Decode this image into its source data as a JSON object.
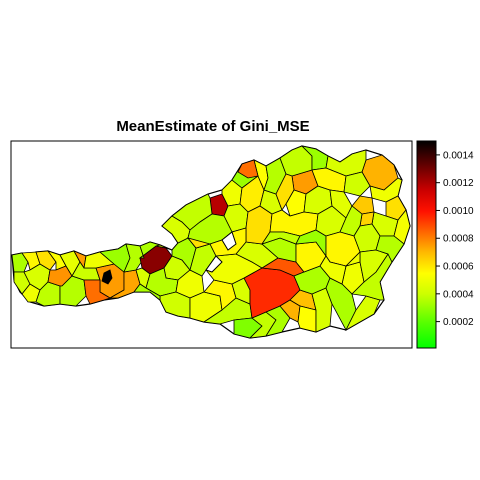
{
  "title": "MeanEstimate of Gini_MSE",
  "legend": {
    "ticks": [
      "0.0002",
      "0.0004",
      "0.0006",
      "0.0008",
      "0.0010",
      "0.0012",
      "0.0014"
    ],
    "tick_values": [
      0.0002,
      0.0004,
      0.0006,
      0.0008,
      0.001,
      0.0012,
      0.0014
    ],
    "min": 1e-05,
    "max": 0.0015,
    "colors": [
      "#00ff00",
      "#aaff00",
      "#ffff00",
      "#ffaa00",
      "#ff5500",
      "#ff0000",
      "#aa0000",
      "#550000",
      "#000000"
    ]
  },
  "regions": [
    {
      "id": "v01",
      "value": 0.0002
    },
    {
      "id": "v02",
      "value": 0.00028
    },
    {
      "id": "v03",
      "value": 0.00035
    },
    {
      "id": "v04",
      "value": 0.0004
    },
    {
      "id": "v05",
      "value": 0.0003
    },
    {
      "id": "v06",
      "value": 0.00045
    },
    {
      "id": "v07",
      "value": 0.00024
    },
    {
      "id": "v08",
      "value": 0.00038
    },
    {
      "id": "v09",
      "value": 0.00062
    },
    {
      "id": "v10",
      "value": 0.00033
    },
    {
      "id": "v11",
      "value": 0.00022
    },
    {
      "id": "v12",
      "value": 0.0006
    },
    {
      "id": "v13",
      "value": 0.00027
    },
    {
      "id": "v14",
      "value": 0.0007
    },
    {
      "id": "v15",
      "value": 0.00035
    },
    {
      "id": "v16",
      "value": 0.00018
    },
    {
      "id": "v17",
      "value": 0.00058
    },
    {
      "id": "v18",
      "value": 0.00022
    },
    {
      "id": "v19",
      "value": 0.0003
    },
    {
      "id": "v20",
      "value": 0.0002
    },
    {
      "id": "v21",
      "value": 0.0003
    },
    {
      "id": "v22",
      "value": 0.00045
    },
    {
      "id": "v23",
      "value": 0.0002
    },
    {
      "id": "u01",
      "value": 0.0011
    },
    {
      "id": "u02",
      "value": 0.00025
    },
    {
      "id": "u03",
      "value": 0.00035
    },
    {
      "id": "u04",
      "value": 0.00018
    },
    {
      "id": "u05",
      "value": 0.00042
    },
    {
      "id": "u06",
      "value": 0.0003
    },
    {
      "id": "u07",
      "value": 0.00022
    },
    {
      "id": "u08",
      "value": 0.00045
    },
    {
      "id": "u09",
      "value": 0.0003
    },
    {
      "id": "u10",
      "value": 0.00038
    },
    {
      "id": "u11",
      "value": 0.0007
    },
    {
      "id": "u12",
      "value": 0.0004
    },
    {
      "id": "u13",
      "value": 0.00022
    },
    {
      "id": "w01",
      "value": 0.0006
    },
    {
      "id": "w02",
      "value": 0.00025
    },
    {
      "id": "w03",
      "value": 0.00055
    },
    {
      "id": "w04",
      "value": 0.00018
    },
    {
      "id": "w05",
      "value": 0.0003
    },
    {
      "id": "t01",
      "value": 0.00028
    },
    {
      "id": "t02",
      "value": 0.00022
    },
    {
      "id": "t03",
      "value": 0.00035
    },
    {
      "id": "t04",
      "value": 0.0006
    },
    {
      "id": "t05",
      "value": 0.0002
    },
    {
      "id": "t06",
      "value": 0.0003
    },
    {
      "id": "t07",
      "value": 0.00025
    },
    {
      "id": "t08",
      "value": 0.0015
    },
    {
      "id": "t09",
      "value": 0.0012
    },
    {
      "id": "s01",
      "value": 0.00045
    },
    {
      "id": "s02",
      "value": 0.00038
    },
    {
      "id": "s03",
      "value": 0.0003
    },
    {
      "id": "s04",
      "value": 0.0004
    },
    {
      "id": "s05",
      "value": 0.00028
    },
    {
      "id": "s06",
      "value": 0.00035
    },
    {
      "id": "s07",
      "value": 0.0005
    },
    {
      "id": "s08",
      "value": 0.00032
    },
    {
      "id": "s09",
      "value": 0.00045
    },
    {
      "id": "s10",
      "value": 0.0003
    },
    {
      "id": "s11",
      "value": 0.00036
    },
    {
      "id": "s12",
      "value": 0.00048
    },
    {
      "id": "s13",
      "value": 0.0004
    },
    {
      "id": "s14",
      "value": 0.00085
    },
    {
      "id": "s15",
      "value": 0.00075
    },
    {
      "id": "s16",
      "value": 0.00055
    },
    {
      "id": "s17",
      "value": 0.00052
    },
    {
      "id": "s18",
      "value": 0.00038
    },
    {
      "id": "s19",
      "value": 0.0003
    },
    {
      "id": "s20",
      "value": 0.0002
    },
    {
      "id": "s21",
      "value": 0.00035
    },
    {
      "id": "s22",
      "value": 0.0003
    },
    {
      "id": "s23",
      "value": 0.00022
    },
    {
      "id": "s24",
      "value": 0.0004
    },
    {
      "id": "s25",
      "value": 0.00025
    },
    {
      "id": "s26",
      "value": 0.00018
    },
    {
      "id": "s27",
      "value": 0.0003
    },
    {
      "id": "s28",
      "value": 0.00025
    },
    {
      "id": "s29",
      "value": 0.0004
    },
    {
      "id": "s30",
      "value": 0.00028
    },
    {
      "id": "s31",
      "value": 0.00035
    },
    {
      "id": "s32",
      "value": 0.0003
    },
    {
      "id": "s33",
      "value": 0.00022
    },
    {
      "id": "s34",
      "value": 0.00035
    },
    {
      "id": "b01",
      "value": 0.00035
    },
    {
      "id": "b02",
      "value": 0.0002
    },
    {
      "id": "b03",
      "value": 0.0003
    },
    {
      "id": "b04",
      "value": 0.00025
    },
    {
      "id": "x01",
      "value": 0.00028
    },
    {
      "id": "x02",
      "value": 0.00035
    },
    {
      "id": "x03",
      "value": 0.0004
    },
    {
      "id": "x04",
      "value": 0.00025
    },
    {
      "id": "x05",
      "value": 0.00015
    },
    {
      "id": "x06",
      "value": 0.00025
    },
    {
      "id": "x07",
      "value": 0.0002
    },
    {
      "id": "x08",
      "value": 0.0003
    }
  ]
}
